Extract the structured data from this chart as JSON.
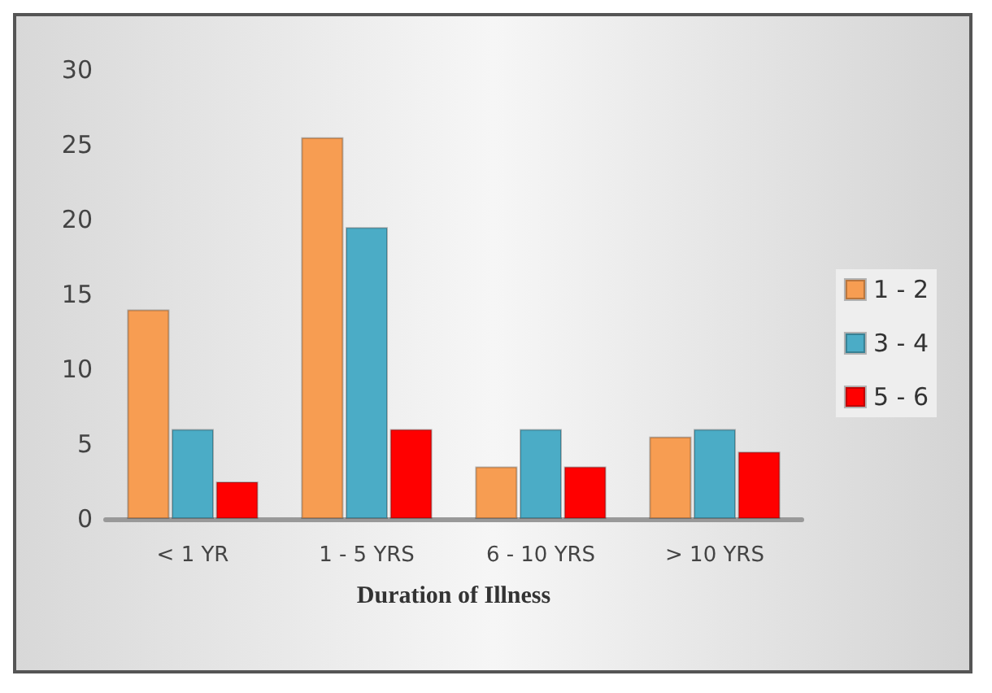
{
  "chart_data": {
    "type": "bar",
    "xlabel": "Duration of Illness",
    "categories": [
      "< 1 YR",
      "1 - 5 YRS",
      "6 - 10 YRS",
      "> 10 YRS"
    ],
    "series": [
      {
        "name": "1 - 2",
        "color": "#f79d52",
        "values": [
          14,
          25.5,
          3.5,
          5.5
        ]
      },
      {
        "name": "3 - 4",
        "color": "#4bacc6",
        "values": [
          6,
          19.5,
          6,
          6
        ]
      },
      {
        "name": "5 - 6",
        "color": "#ff0000",
        "values": [
          2.5,
          6,
          3.5,
          4.5
        ]
      }
    ],
    "ylim": [
      0,
      30
    ],
    "yticks": [
      0,
      5,
      10,
      15,
      20,
      25,
      30
    ],
    "grid": false,
    "legend": "right"
  }
}
